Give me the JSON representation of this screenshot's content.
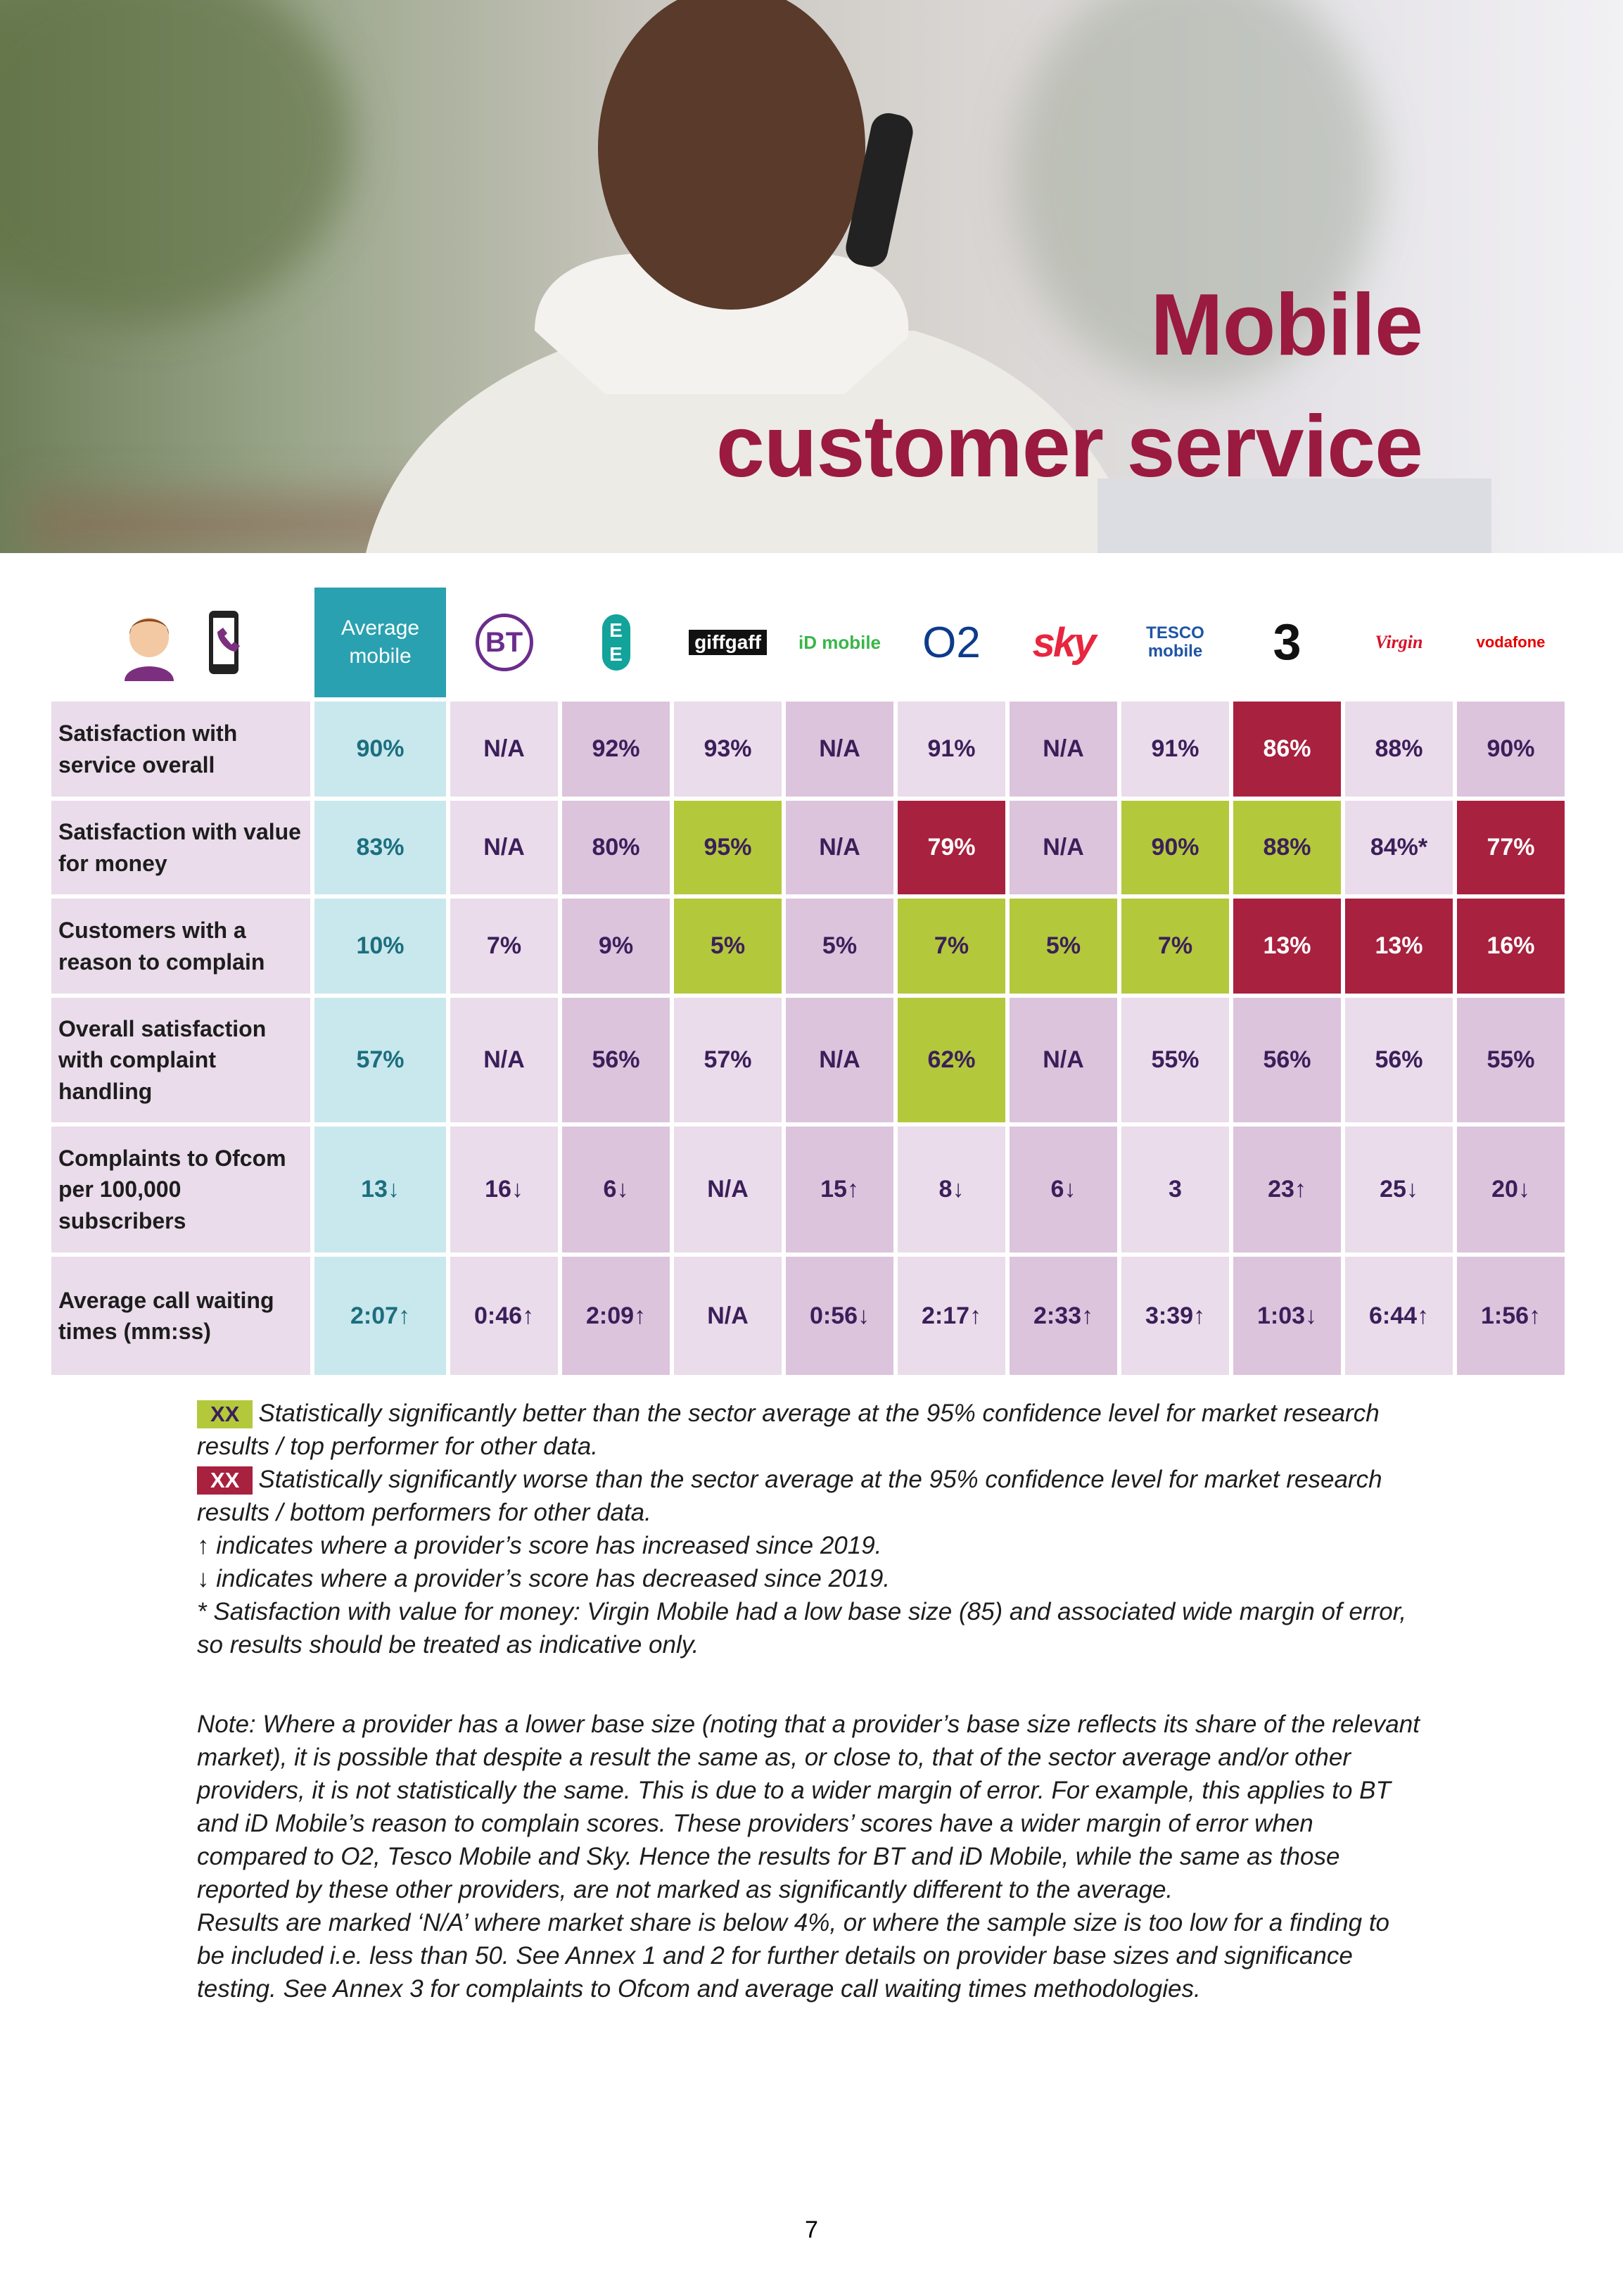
{
  "header": {
    "title_lines": [
      "Mobile",
      "customer service"
    ]
  },
  "table": {
    "columns": [
      {
        "label": "Average mobile",
        "kind": "average"
      },
      {
        "label": "BT",
        "kind": "bt"
      },
      {
        "label": "E E",
        "kind": "ee"
      },
      {
        "label": "giffgaff",
        "kind": "giffgaff"
      },
      {
        "label": "iD mobile",
        "kind": "id"
      },
      {
        "label": "O2",
        "kind": "o2"
      },
      {
        "label": "sky",
        "kind": "sky"
      },
      {
        "label": "TESCO mobile",
        "kind": "tesco"
      },
      {
        "label": "3",
        "kind": "three"
      },
      {
        "label": "Virgin",
        "kind": "virgin"
      },
      {
        "label": "vodafone",
        "kind": "vodafone"
      }
    ],
    "rows": [
      {
        "label": "Satisfaction with service overall",
        "cells": [
          {
            "text": "90%"
          },
          {
            "text": "N/A"
          },
          {
            "text": "92%"
          },
          {
            "text": "93%"
          },
          {
            "text": "N/A"
          },
          {
            "text": "91%"
          },
          {
            "text": "N/A"
          },
          {
            "text": "91%"
          },
          {
            "text": "86%",
            "mark": "worse"
          },
          {
            "text": "88%"
          },
          {
            "text": "90%"
          }
        ]
      },
      {
        "label": "Satisfaction with value for money",
        "cells": [
          {
            "text": "83%"
          },
          {
            "text": "N/A"
          },
          {
            "text": "80%"
          },
          {
            "text": "95%",
            "mark": "better"
          },
          {
            "text": "N/A"
          },
          {
            "text": "79%",
            "mark": "worse"
          },
          {
            "text": "N/A"
          },
          {
            "text": "90%",
            "mark": "better"
          },
          {
            "text": "88%",
            "mark": "better"
          },
          {
            "text": "84%*"
          },
          {
            "text": "77%",
            "mark": "worse"
          }
        ]
      },
      {
        "label": "Customers with a reason to complain",
        "cells": [
          {
            "text": "10%"
          },
          {
            "text": "7%"
          },
          {
            "text": "9%"
          },
          {
            "text": "5%",
            "mark": "better"
          },
          {
            "text": "5%"
          },
          {
            "text": "7%",
            "mark": "better"
          },
          {
            "text": "5%",
            "mark": "better"
          },
          {
            "text": "7%",
            "mark": "better"
          },
          {
            "text": "13%",
            "mark": "worse"
          },
          {
            "text": "13%",
            "mark": "worse"
          },
          {
            "text": "16%",
            "mark": "worse"
          }
        ]
      },
      {
        "label": "Overall satisfaction with complaint handling",
        "cells": [
          {
            "text": "57%"
          },
          {
            "text": "N/A"
          },
          {
            "text": "56%"
          },
          {
            "text": "57%"
          },
          {
            "text": "N/A"
          },
          {
            "text": "62%",
            "mark": "better"
          },
          {
            "text": "N/A"
          },
          {
            "text": "55%"
          },
          {
            "text": "56%"
          },
          {
            "text": "56%"
          },
          {
            "text": "55%"
          }
        ]
      },
      {
        "label": "Complaints to Ofcom per 100,000 subscribers",
        "cells": [
          {
            "text": "13↓"
          },
          {
            "text": "16↓"
          },
          {
            "text": "6↓"
          },
          {
            "text": "N/A"
          },
          {
            "text": "15↑"
          },
          {
            "text": "8↓"
          },
          {
            "text": "6↓"
          },
          {
            "text": "3"
          },
          {
            "text": "23↑"
          },
          {
            "text": "25↓"
          },
          {
            "text": "20↓"
          }
        ]
      },
      {
        "label": "Average call waiting times (mm:ss)",
        "cells": [
          {
            "text": "2:07↑"
          },
          {
            "text": "0:46↑"
          },
          {
            "text": "2:09↑"
          },
          {
            "text": "N/A"
          },
          {
            "text": "0:56↓"
          },
          {
            "text": "2:17↑"
          },
          {
            "text": "2:33↑"
          },
          {
            "text": "3:39↑"
          },
          {
            "text": "1:03↓"
          },
          {
            "text": "6:44↑"
          },
          {
            "text": "1:56↑"
          }
        ]
      }
    ]
  },
  "legend": [
    {
      "swatch": "XX",
      "mark": "better",
      "text": "Statistically significantly better than the sector average at the 95% confidence level for market research results / top performer for other data."
    },
    {
      "swatch": "XX",
      "mark": "worse",
      "text": "Statistically significantly worse than the sector average at the 95% confidence level for market research results / bottom performers for other data."
    },
    {
      "text": "↑ indicates where a provider’s score has increased since 2019."
    },
    {
      "text": "↓ indicates where a provider’s score has decreased since 2019."
    },
    {
      "text": "* Satisfaction with value for money: Virgin Mobile had a low base size (85) and associated wide margin of error, so results should be treated as indicative only."
    }
  ],
  "notes": [
    "Note: Where a provider has a lower base size (noting that a provider’s base size reflects its share of the relevant market), it is possible that despite a result the same as, or close to, that of the sector average and/or other providers, it is not statistically the same. This is due to a wider margin of error. For example, this applies to BT and iD Mobile’s reason to complain scores. These providers’ scores have a wider margin of error when compared to O2, Tesco Mobile and Sky. Hence the results for BT and iD Mobile, while the same as those reported by these other providers, are not marked as significantly different to the average.",
    "Results are marked ‘N/A’ where market share is below 4%, or where the sample size is too low for a finding to be included i.e. less than 50. See Annex 1 and 2 for further details on provider base sizes and significance testing. See Annex 3 for complaints to Ofcom and average call waiting times methodologies."
  ],
  "page_number": "7"
}
